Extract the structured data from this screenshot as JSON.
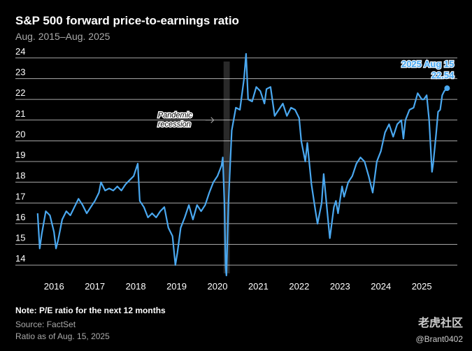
{
  "chart_data": {
    "type": "line",
    "title": "S&P 500 forward price-to-earnings ratio",
    "subtitle": "Aug. 2015–Aug. 2025",
    "x": [
      2015.6,
      2015.65,
      2015.7,
      2015.8,
      2015.9,
      2016.0,
      2016.05,
      2016.1,
      2016.2,
      2016.3,
      2016.4,
      2016.5,
      2016.6,
      2016.7,
      2016.8,
      2016.9,
      2017.0,
      2017.1,
      2017.15,
      2017.25,
      2017.35,
      2017.45,
      2017.55,
      2017.65,
      2017.75,
      2017.85,
      2017.95,
      2018.05,
      2018.1,
      2018.2,
      2018.3,
      2018.4,
      2018.5,
      2018.6,
      2018.7,
      2018.8,
      2018.9,
      2018.97,
      2019.02,
      2019.1,
      2019.2,
      2019.3,
      2019.4,
      2019.5,
      2019.6,
      2019.7,
      2019.8,
      2019.9,
      2020.0,
      2020.1,
      2020.13,
      2020.17,
      2020.2,
      2020.22,
      2020.27,
      2020.35,
      2020.45,
      2020.55,
      2020.65,
      2020.7,
      2020.75,
      2020.85,
      2020.95,
      2021.05,
      2021.15,
      2021.2,
      2021.3,
      2021.4,
      2021.5,
      2021.6,
      2021.7,
      2021.8,
      2021.9,
      2022.0,
      2022.05,
      2022.15,
      2022.2,
      2022.3,
      2022.4,
      2022.45,
      2022.55,
      2022.6,
      2022.7,
      2022.75,
      2022.85,
      2022.9,
      2022.95,
      2023.05,
      2023.1,
      2023.2,
      2023.3,
      2023.4,
      2023.5,
      2023.6,
      2023.7,
      2023.8,
      2023.9,
      2024.0,
      2024.1,
      2024.2,
      2024.3,
      2024.4,
      2024.5,
      2024.55,
      2024.6,
      2024.7,
      2024.8,
      2024.9,
      2025.0,
      2025.05,
      2025.12,
      2025.18,
      2025.25,
      2025.28,
      2025.35,
      2025.4,
      2025.45,
      2025.5,
      2025.55,
      2025.62
    ],
    "values": [
      16.5,
      14.8,
      15.5,
      16.6,
      16.4,
      15.6,
      14.8,
      15.2,
      16.2,
      16.6,
      16.4,
      16.8,
      17.2,
      16.9,
      16.5,
      16.8,
      17.1,
      17.5,
      18.0,
      17.6,
      17.7,
      17.6,
      17.8,
      17.6,
      17.9,
      18.1,
      18.3,
      18.9,
      17.1,
      16.8,
      16.3,
      16.5,
      16.3,
      16.6,
      16.8,
      15.8,
      15.4,
      14.0,
      14.6,
      15.8,
      16.3,
      16.9,
      16.2,
      16.9,
      16.6,
      16.9,
      17.5,
      18.0,
      18.3,
      18.8,
      19.2,
      17.0,
      13.9,
      13.5,
      17.0,
      20.5,
      21.6,
      21.5,
      23.0,
      24.2,
      22.0,
      21.9,
      22.6,
      22.4,
      21.8,
      22.5,
      22.6,
      21.2,
      21.5,
      21.8,
      21.2,
      21.6,
      21.5,
      21.1,
      20.0,
      19.0,
      19.9,
      17.9,
      16.6,
      16.0,
      17.0,
      18.4,
      16.3,
      15.3,
      16.8,
      17.1,
      16.5,
      17.8,
      17.3,
      18.0,
      18.3,
      18.9,
      19.2,
      19.0,
      18.3,
      17.5,
      19.0,
      19.5,
      20.4,
      20.8,
      20.2,
      20.8,
      21.0,
      20.1,
      21.0,
      21.5,
      21.6,
      22.3,
      22.0,
      22.0,
      22.2,
      21.0,
      18.5,
      18.9,
      20.3,
      21.4,
      21.5,
      22.2,
      22.4,
      22.54
    ],
    "color": "#4aa8f0",
    "xlim": [
      2015.5,
      2025.87
    ],
    "xticks": [
      2016,
      2017,
      2018,
      2019,
      2020,
      2021,
      2022,
      2023,
      2024,
      2025
    ],
    "ylim": [
      13.6,
      24.3
    ],
    "yticks": [
      14,
      15,
      16,
      17,
      18,
      19,
      20,
      21,
      22,
      23,
      24
    ],
    "grid": true,
    "recession": {
      "label": [
        "Pandemic",
        "recession"
      ],
      "x": [
        2020.15,
        2020.3
      ]
    },
    "end_label": "2025 Aug 15",
    "notes": [
      "Note: P/E ratio for the next 12 months",
      "Source: FactSet",
      "Ratio as of Aug. 15, 2025"
    ],
    "watermark": [
      "老虎社区",
      "@Brant0402"
    ]
  }
}
